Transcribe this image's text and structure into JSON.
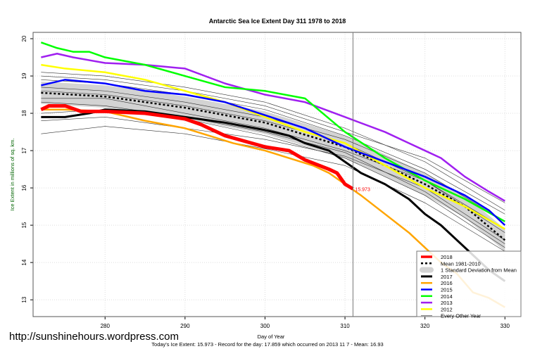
{
  "chart_data": {
    "type": "line",
    "title": "Antarctic Sea Ice Extent Day 311 1978 to 2018",
    "xlabel": "Day of Year",
    "ylabel": "Ice Extent in millions of sq. km.",
    "xlim": [
      271,
      332
    ],
    "ylim": [
      12.55,
      20.17
    ],
    "xticks": [
      280,
      290,
      300,
      310,
      320,
      330
    ],
    "yticks": [
      13,
      14,
      15,
      16,
      17,
      18,
      19,
      20
    ],
    "grid": true,
    "legend_position": "bottom-right",
    "vline_day": 311,
    "annotation": {
      "day": 311,
      "value": 15.973,
      "text": "15.973",
      "color": "#ff0000"
    },
    "sd_band": {
      "label": "1 Standard Deviation from Mean",
      "width": 0.3,
      "color": "#d3d3d3"
    },
    "mean": {
      "name": "Mean 1981-2010",
      "color": "#000000",
      "x": [
        272,
        280,
        290,
        300,
        310,
        320,
        325,
        330
      ],
      "y": [
        18.55,
        18.45,
        18.15,
        17.75,
        17.1,
        16.1,
        15.5,
        14.6
      ]
    },
    "other_years_label": "Every Other Year",
    "other_years": [
      {
        "x": [
          272,
          280,
          290,
          300,
          310,
          320,
          330
        ],
        "y": [
          17.45,
          17.65,
          17.45,
          17.05,
          16.6,
          15.6,
          14.3
        ]
      },
      {
        "x": [
          272,
          280,
          290,
          300,
          310,
          320,
          330
        ],
        "y": [
          17.8,
          17.9,
          17.6,
          17.3,
          16.85,
          16.0,
          14.6
        ]
      },
      {
        "x": [
          272,
          280,
          290,
          300,
          310,
          320,
          330
        ],
        "y": [
          18.3,
          18.2,
          17.9,
          17.5,
          16.95,
          15.9,
          14.5
        ]
      },
      {
        "x": [
          272,
          280,
          290,
          300,
          310,
          320,
          330
        ],
        "y": [
          18.6,
          18.5,
          18.2,
          17.8,
          17.2,
          16.2,
          14.9
        ]
      },
      {
        "x": [
          272,
          280,
          290,
          300,
          310,
          320,
          330
        ],
        "y": [
          18.9,
          18.8,
          18.5,
          18.1,
          17.4,
          16.5,
          15.3
        ]
      },
      {
        "x": [
          272,
          280,
          290,
          300,
          310,
          320,
          330
        ],
        "y": [
          19.1,
          19.0,
          18.7,
          18.3,
          17.6,
          16.7,
          15.4
        ]
      },
      {
        "x": [
          272,
          280,
          290,
          300,
          310,
          320,
          330
        ],
        "y": [
          18.4,
          18.4,
          18.0,
          17.6,
          17.0,
          16.2,
          14.8
        ]
      },
      {
        "x": [
          272,
          280,
          290,
          300,
          310,
          320,
          330
        ],
        "y": [
          18.7,
          18.6,
          18.3,
          17.9,
          17.3,
          16.4,
          15.1
        ]
      },
      {
        "x": [
          272,
          280,
          290,
          300,
          310,
          320,
          330
        ],
        "y": [
          18.0,
          18.1,
          17.85,
          17.4,
          16.8,
          15.8,
          14.4
        ]
      },
      {
        "x": [
          272,
          280,
          290,
          300,
          310,
          320,
          330
        ],
        "y": [
          19.0,
          18.9,
          18.6,
          18.2,
          17.5,
          16.8,
          15.6
        ]
      }
    ],
    "series": [
      {
        "name": "2012",
        "color": "#ffff00",
        "width": 2.5,
        "x": [
          272,
          275,
          280,
          285,
          290,
          295,
          300,
          305,
          310,
          315,
          320,
          325,
          330
        ],
        "y": [
          19.3,
          19.2,
          19.1,
          18.9,
          18.6,
          18.3,
          17.9,
          17.5,
          17.2,
          16.6,
          16.0,
          15.5,
          14.9
        ]
      },
      {
        "name": "2013",
        "color": "#a020f0",
        "width": 2.5,
        "x": [
          272,
          274,
          276,
          280,
          285,
          290,
          295,
          300,
          305,
          310,
          315,
          318,
          320,
          322,
          325,
          328,
          330
        ],
        "y": [
          19.5,
          19.6,
          19.5,
          19.35,
          19.3,
          19.2,
          18.8,
          18.5,
          18.3,
          17.9,
          17.5,
          17.2,
          17.0,
          16.8,
          16.3,
          15.9,
          15.65
        ]
      },
      {
        "name": "2014",
        "color": "#00ff00",
        "width": 2.5,
        "x": [
          272,
          274,
          276,
          278,
          280,
          285,
          290,
          295,
          300,
          305,
          310,
          315,
          320,
          325,
          330
        ],
        "y": [
          19.9,
          19.75,
          19.65,
          19.65,
          19.5,
          19.3,
          19.0,
          18.7,
          18.6,
          18.4,
          17.5,
          16.8,
          16.2,
          15.7,
          15.1
        ]
      },
      {
        "name": "2015",
        "color": "#0000ff",
        "width": 2.5,
        "x": [
          272,
          275,
          280,
          285,
          290,
          295,
          300,
          305,
          310,
          315,
          320,
          325,
          328,
          330
        ],
        "y": [
          18.75,
          18.9,
          18.8,
          18.6,
          18.5,
          18.3,
          17.95,
          17.6,
          17.1,
          16.7,
          16.3,
          15.8,
          15.4,
          15.0
        ]
      },
      {
        "name": "2016",
        "color": "#ffa500",
        "width": 2.5,
        "x": [
          272,
          275,
          280,
          285,
          290,
          293,
          296,
          300,
          303,
          306,
          308,
          310,
          312,
          315,
          318,
          320,
          322,
          324,
          326,
          328,
          330
        ],
        "y": [
          18.1,
          18.1,
          18.05,
          17.8,
          17.6,
          17.4,
          17.2,
          17.0,
          16.8,
          16.6,
          16.4,
          16.1,
          15.8,
          15.3,
          14.8,
          14.4,
          14.0,
          13.7,
          13.2,
          13.05,
          12.8
        ]
      },
      {
        "name": "2017",
        "color": "#000000",
        "width": 3,
        "x": [
          272,
          275,
          278,
          280,
          285,
          290,
          295,
          300,
          303,
          305,
          308,
          310,
          312,
          315,
          318,
          320,
          322,
          324,
          326,
          328,
          330
        ],
        "y": [
          17.9,
          17.9,
          18.0,
          18.1,
          18.05,
          17.9,
          17.75,
          17.55,
          17.4,
          17.2,
          17.0,
          16.7,
          16.4,
          16.1,
          15.7,
          15.3,
          15.0,
          14.6,
          14.2,
          13.8,
          13.5
        ]
      },
      {
        "name": "2018",
        "color": "#ff0000",
        "width": 5,
        "x": [
          272,
          273,
          275,
          277,
          280,
          285,
          290,
          292,
          295,
          300,
          303,
          305,
          308,
          309,
          310,
          311
        ],
        "y": [
          18.1,
          18.2,
          18.2,
          18.05,
          18.05,
          18.0,
          17.85,
          17.7,
          17.4,
          17.1,
          17.0,
          16.75,
          16.5,
          16.4,
          16.1,
          15.973
        ]
      }
    ],
    "legend_order": [
      "2018",
      "Mean 1981-2010",
      "1 Standard Deviation from Mean",
      "2017",
      "2016",
      "2015",
      "2014",
      "2013",
      "2012",
      "Every Other Year"
    ]
  },
  "watermark": "http://sunshinehours.wordpress.com",
  "subtitle": "Today's Ice Extent: 15.973  - Record for the day: 17.859 which occurred on 2013 11 7  - Mean: 16.93"
}
